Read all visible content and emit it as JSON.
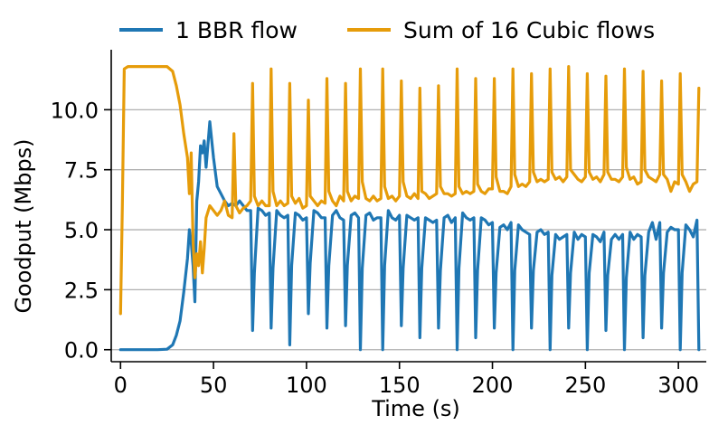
{
  "chart_data": {
    "type": "line",
    "title": "",
    "xlabel": "Time (s)",
    "ylabel": "Goodput (Mbps)",
    "xlim": [
      -5,
      315
    ],
    "ylim": [
      -0.5,
      12.5
    ],
    "xticks": [
      0,
      50,
      100,
      150,
      200,
      250,
      300
    ],
    "xtick_labels": [
      "0",
      "50",
      "100",
      "150",
      "200",
      "250",
      "300"
    ],
    "yticks": [
      0.0,
      2.5,
      5.0,
      7.5,
      10.0
    ],
    "ytick_labels": [
      "0.0",
      "2.5",
      "5.0",
      "7.5",
      "10.0"
    ],
    "grid": "horizontal",
    "legend_position": "top",
    "colors": {
      "bbr": "#1f77b4",
      "cubic": "#e69c0a",
      "axis": "#000000",
      "grid": "#b0b0b0"
    },
    "series": [
      {
        "name": "1 BBR flow",
        "x": [
          0,
          10,
          20,
          25,
          28,
          30,
          32,
          34,
          36,
          37,
          38,
          39,
          40,
          41,
          42,
          43,
          44,
          45,
          46,
          48,
          50,
          52,
          54,
          56,
          58,
          60,
          62,
          64,
          66,
          68,
          70,
          71,
          72,
          74,
          76,
          78,
          80,
          81,
          82,
          84,
          86,
          88,
          90,
          91,
          92,
          94,
          96,
          98,
          100,
          101,
          102,
          104,
          106,
          108,
          110,
          111,
          112,
          114,
          116,
          118,
          120,
          121,
          122,
          124,
          126,
          128,
          129,
          130,
          132,
          134,
          136,
          138,
          140,
          141,
          142,
          144,
          146,
          148,
          150,
          151,
          152,
          154,
          156,
          158,
          160,
          161,
          162,
          164,
          166,
          168,
          170,
          171,
          172,
          174,
          176,
          178,
          180,
          181,
          182,
          184,
          186,
          188,
          190,
          191,
          192,
          194,
          196,
          198,
          200,
          201,
          202,
          204,
          206,
          208,
          210,
          211,
          212,
          214,
          216,
          218,
          220,
          221,
          222,
          224,
          226,
          228,
          230,
          231,
          232,
          234,
          236,
          238,
          240,
          241,
          242,
          244,
          246,
          248,
          250,
          251,
          252,
          254,
          256,
          258,
          260,
          261,
          262,
          264,
          266,
          268,
          270,
          271,
          272,
          274,
          276,
          278,
          280,
          281,
          282,
          284,
          286,
          288,
          290,
          291,
          292,
          294,
          296,
          298,
          300,
          301,
          302,
          304,
          306,
          308,
          310,
          311
        ],
        "values": [
          0.0,
          0.0,
          0.0,
          0.02,
          0.2,
          0.6,
          1.2,
          2.4,
          3.8,
          5.0,
          4.5,
          3.5,
          2.0,
          6.2,
          7.0,
          8.5,
          8.2,
          8.7,
          7.6,
          9.5,
          8.0,
          6.8,
          6.5,
          6.2,
          6.0,
          6.1,
          6.0,
          6.2,
          6.0,
          5.8,
          5.8,
          0.8,
          3.2,
          5.9,
          5.8,
          5.6,
          5.7,
          0.9,
          3.4,
          5.8,
          5.6,
          5.5,
          5.6,
          0.2,
          3.5,
          5.7,
          5.6,
          5.4,
          5.5,
          1.5,
          3.6,
          5.8,
          5.7,
          5.5,
          5.5,
          0.9,
          3.5,
          5.6,
          5.8,
          5.5,
          5.4,
          1.0,
          3.5,
          5.6,
          5.7,
          5.5,
          0.0,
          3.4,
          5.6,
          5.7,
          5.4,
          5.5,
          5.5,
          0.0,
          3.5,
          5.8,
          5.5,
          5.4,
          5.6,
          1.0,
          3.4,
          5.6,
          5.5,
          5.4,
          5.5,
          0.5,
          3.4,
          5.5,
          5.4,
          5.3,
          5.4,
          0.9,
          3.3,
          5.5,
          5.6,
          5.3,
          5.5,
          0.0,
          3.4,
          5.7,
          5.5,
          5.4,
          5.5,
          0.5,
          3.3,
          5.5,
          5.4,
          5.2,
          5.3,
          0.9,
          3.2,
          5.1,
          5.2,
          5.0,
          5.3,
          0.0,
          3.3,
          5.2,
          5.0,
          4.9,
          4.8,
          0.9,
          3.3,
          4.9,
          5.0,
          4.8,
          4.9,
          0.0,
          3.1,
          4.8,
          4.6,
          4.7,
          4.8,
          0.9,
          3.2,
          4.9,
          4.6,
          4.8,
          4.7,
          0.0,
          3.2,
          4.8,
          4.7,
          4.5,
          4.9,
          0.8,
          3.1,
          4.6,
          4.8,
          4.6,
          4.8,
          0.0,
          3.0,
          4.9,
          4.6,
          4.8,
          4.7,
          0.5,
          3.1,
          4.9,
          5.3,
          4.6,
          5.3,
          0.9,
          3.2,
          4.9,
          5.1,
          5.0,
          5.0,
          0.0,
          3.2,
          5.2,
          5.0,
          4.7,
          5.4,
          0.0
        ]
      },
      {
        "name": "Sum of 16 Cubic flows",
        "x": [
          0,
          1,
          2,
          4,
          10,
          20,
          25,
          28,
          30,
          32,
          34,
          36,
          37,
          38,
          39,
          40,
          41,
          42,
          43,
          44,
          45,
          46,
          48,
          50,
          52,
          54,
          56,
          58,
          60,
          61,
          62,
          64,
          66,
          68,
          70,
          71,
          72,
          74,
          76,
          78,
          80,
          81,
          82,
          84,
          86,
          88,
          90,
          91,
          92,
          94,
          96,
          98,
          100,
          101,
          102,
          104,
          106,
          108,
          110,
          111,
          112,
          114,
          116,
          118,
          120,
          121,
          122,
          124,
          126,
          128,
          129,
          130,
          132,
          134,
          136,
          138,
          140,
          141,
          142,
          144,
          146,
          148,
          150,
          151,
          152,
          154,
          156,
          158,
          160,
          161,
          162,
          164,
          166,
          168,
          170,
          171,
          172,
          174,
          176,
          178,
          180,
          181,
          182,
          184,
          186,
          188,
          190,
          191,
          192,
          194,
          196,
          198,
          200,
          201,
          202,
          204,
          206,
          208,
          210,
          211,
          212,
          214,
          216,
          218,
          220,
          221,
          222,
          224,
          226,
          228,
          230,
          231,
          232,
          234,
          236,
          238,
          240,
          241,
          242,
          244,
          246,
          248,
          250,
          251,
          252,
          254,
          256,
          258,
          260,
          261,
          262,
          264,
          266,
          268,
          270,
          271,
          272,
          274,
          276,
          278,
          280,
          281,
          282,
          284,
          286,
          288,
          290,
          291,
          292,
          294,
          296,
          298,
          300,
          301,
          302,
          304,
          306,
          308,
          310,
          311
        ],
        "values": [
          1.5,
          6.0,
          11.7,
          11.8,
          11.8,
          11.8,
          11.8,
          11.6,
          11.0,
          10.2,
          9.0,
          8.0,
          6.5,
          8.2,
          4.5,
          3.0,
          4.0,
          3.5,
          4.5,
          3.2,
          4.2,
          5.5,
          6.0,
          5.8,
          5.6,
          5.8,
          6.2,
          5.6,
          5.5,
          9.0,
          6.0,
          5.7,
          5.9,
          6.0,
          6.2,
          11.1,
          6.4,
          6.0,
          6.2,
          6.0,
          6.0,
          11.7,
          6.6,
          6.0,
          6.2,
          6.0,
          6.1,
          11.1,
          6.4,
          6.1,
          6.3,
          5.9,
          6.0,
          10.4,
          6.4,
          6.2,
          6.0,
          6.2,
          6.1,
          11.3,
          6.6,
          6.2,
          6.0,
          6.4,
          6.2,
          11.1,
          6.6,
          6.2,
          6.4,
          6.3,
          11.7,
          7.0,
          6.3,
          6.2,
          6.4,
          6.2,
          6.3,
          11.7,
          6.8,
          6.3,
          6.4,
          6.2,
          6.4,
          11.2,
          7.0,
          6.4,
          6.3,
          6.5,
          6.3,
          10.9,
          6.6,
          6.5,
          6.3,
          6.4,
          6.5,
          11.0,
          6.8,
          6.5,
          6.5,
          6.4,
          6.5,
          11.7,
          6.8,
          6.5,
          6.6,
          6.5,
          6.6,
          11.3,
          6.9,
          6.6,
          6.5,
          6.7,
          6.7,
          11.3,
          7.2,
          6.6,
          6.6,
          6.5,
          6.8,
          11.7,
          7.3,
          6.8,
          6.9,
          6.8,
          7.0,
          11.5,
          7.4,
          7.0,
          7.1,
          7.0,
          7.1,
          11.7,
          7.4,
          7.1,
          7.2,
          7.0,
          7.2,
          11.8,
          7.5,
          7.3,
          7.1,
          7.0,
          7.2,
          11.5,
          7.4,
          7.1,
          7.2,
          7.0,
          7.3,
          11.4,
          7.4,
          7.1,
          7.1,
          7.0,
          7.2,
          11.7,
          7.6,
          7.1,
          7.2,
          6.9,
          7.0,
          11.6,
          7.5,
          7.2,
          7.1,
          7.0,
          7.3,
          11.2,
          7.3,
          7.1,
          6.6,
          7.0,
          6.9,
          11.5,
          7.3,
          7.0,
          6.6,
          6.9,
          7.0,
          10.9
        ]
      }
    ]
  }
}
